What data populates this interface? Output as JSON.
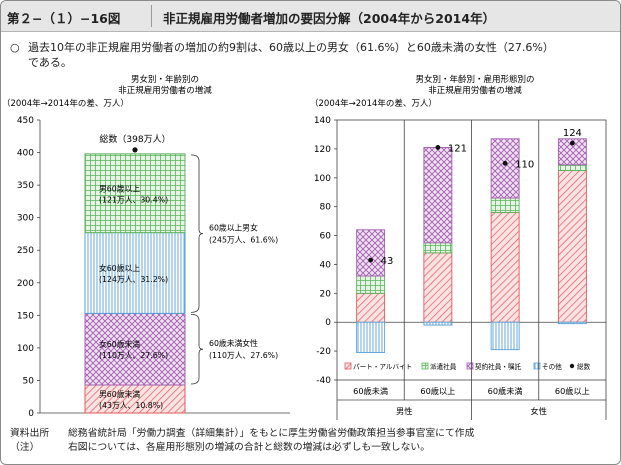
{
  "header": {
    "figure_no": "第２−（１）−16図",
    "title": "非正規雇用労働者増加の要因分解（2004年から2014年）"
  },
  "lead": {
    "mark": "○",
    "line1": "過去10年の非正規雇用労働者の増加の約9割は、60歳以上の男女（61.6%）と60歳未満の女性（27.6%）",
    "line2": "である。"
  },
  "chart_data": [
    {
      "type": "bar",
      "stacked": true,
      "title_line1": "男女別・年齢別の",
      "title_line2": "非正規雇用労働者の増減",
      "ylabel": "（2004年→2014年の差、万人）",
      "ylim": [
        0,
        450
      ],
      "yticks": [
        0,
        50,
        100,
        150,
        200,
        250,
        300,
        350,
        400,
        450
      ],
      "total_label": "総数（398万人）",
      "total": 398,
      "segments": [
        {
          "key": "m_under60",
          "value": 43,
          "name": "男60歳未満",
          "detail": "(43万人、10.8%)",
          "color": "#e05a5a",
          "pattern": "diag"
        },
        {
          "key": "f_under60",
          "value": 110,
          "name": "女60歳未満",
          "detail": "(110万人、27.6%)",
          "color": "#a45fb0",
          "pattern": "cross"
        },
        {
          "key": "f_60plus",
          "value": 124,
          "name": "女60歳以上",
          "detail": "(124万人、31.2%)",
          "color": "#5aa0d8",
          "pattern": "vert"
        },
        {
          "key": "m_60plus",
          "value": 121,
          "name": "男60歳以上",
          "detail": "(121万人、30.4%)",
          "color": "#5cb35c",
          "pattern": "grid"
        }
      ],
      "braces": [
        {
          "from": 153,
          "to": 398,
          "line1": "60歳以上男女",
          "line2": "(245万人、61.6%)"
        },
        {
          "from": 43,
          "to": 153,
          "line1": "60歳未満女性",
          "line2": "(110万人、27.6%)"
        }
      ]
    },
    {
      "type": "bar",
      "stacked": true,
      "title_line1": "男女別・年齢別・雇用形態別の",
      "title_line2": "非正規雇用労働者の増減",
      "ylabel": "（2004年→2014年の差、万人）",
      "ylim": [
        -40,
        140
      ],
      "yticks": [
        -40,
        -20,
        0,
        20,
        40,
        60,
        80,
        100,
        120,
        140
      ],
      "categories": [
        "60歳未満",
        "60歳以上",
        "60歳未満",
        "60歳以上"
      ],
      "groups": [
        {
          "label": "男性",
          "span": [
            0,
            1
          ]
        },
        {
          "label": "女性",
          "span": [
            2,
            3
          ]
        }
      ],
      "series": [
        {
          "key": "part",
          "name": "パート・アルバイト",
          "values": [
            20,
            48,
            76,
            105
          ],
          "color": "#e05a5a",
          "pattern": "diag"
        },
        {
          "key": "dispatch",
          "name": "派遣社員",
          "values": [
            12,
            7,
            10,
            4
          ],
          "color": "#5cb35c",
          "pattern": "grid"
        },
        {
          "key": "contract",
          "name": "契約社員・嘱託",
          "values": [
            32,
            66,
            41,
            18
          ],
          "color": "#a45fb0",
          "pattern": "cross"
        },
        {
          "key": "other",
          "name": "その他",
          "values": [
            -21,
            -2,
            -19,
            -1
          ],
          "color": "#5aa0d8",
          "pattern": "vert"
        }
      ],
      "totals": [
        43,
        121,
        110,
        124
      ],
      "total_legend": "総数"
    }
  ],
  "notes": [
    {
      "key": "資料出所",
      "text": "総務省統計局「労働力調査（詳細集計）」をもとに厚生労働省労働政策担当参事官室にて作成"
    },
    {
      "key": "（注）",
      "text": "右図については、各雇用形態別の増減の合計と総数の増減は必ずしも一致しない。"
    }
  ]
}
